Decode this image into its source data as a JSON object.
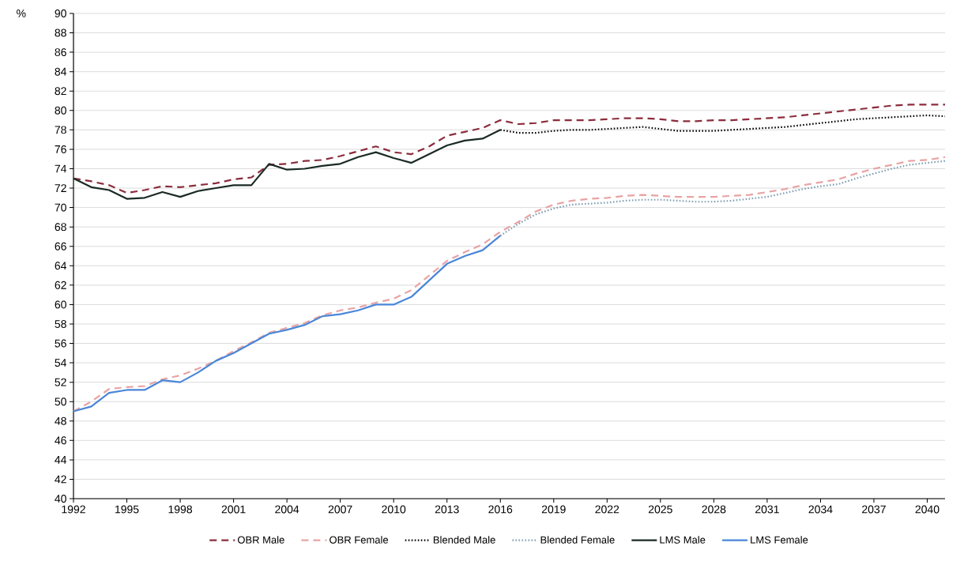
{
  "chart_data": {
    "type": "line",
    "ylabel": "%",
    "xlim": [
      1992,
      2041
    ],
    "ylim": [
      40,
      90
    ],
    "xticks": [
      1992,
      1995,
      1998,
      2001,
      2004,
      2007,
      2010,
      2013,
      2016,
      2019,
      2022,
      2025,
      2028,
      2031,
      2034,
      2037,
      2040
    ],
    "yticks": [
      40,
      42,
      44,
      46,
      48,
      50,
      52,
      54,
      56,
      58,
      60,
      62,
      64,
      66,
      68,
      70,
      72,
      74,
      76,
      78,
      80,
      82,
      84,
      86,
      88,
      90
    ],
    "grid": "y",
    "legend": "bottom",
    "marker": "none",
    "series": [
      {
        "name": "OBR Male",
        "color": "#8b2c3c",
        "line_style": "dashed",
        "x": [
          1992,
          1993,
          1994,
          1995,
          1996,
          1997,
          1998,
          1999,
          2000,
          2001,
          2002,
          2003,
          2004,
          2005,
          2006,
          2007,
          2008,
          2009,
          2010,
          2011,
          2012,
          2013,
          2014,
          2015,
          2016,
          2017,
          2018,
          2019,
          2020,
          2021,
          2022,
          2023,
          2024,
          2025,
          2026,
          2027,
          2028,
          2029,
          2030,
          2031,
          2032,
          2033,
          2034,
          2035,
          2036,
          2037,
          2038,
          2039,
          2040,
          2041
        ],
        "values": [
          73.0,
          72.7,
          72.3,
          71.5,
          71.8,
          72.2,
          72.1,
          72.3,
          72.5,
          72.9,
          73.1,
          74.4,
          74.5,
          74.8,
          74.9,
          75.3,
          75.8,
          76.3,
          75.7,
          75.5,
          76.3,
          77.4,
          77.8,
          78.2,
          79.0,
          78.6,
          78.7,
          79.0,
          79.0,
          79.0,
          79.1,
          79.2,
          79.2,
          79.1,
          78.9,
          78.9,
          79.0,
          79.0,
          79.1,
          79.2,
          79.3,
          79.5,
          79.7,
          79.9,
          80.1,
          80.3,
          80.5,
          80.6,
          80.6,
          80.6
        ]
      },
      {
        "name": "OBR Female",
        "color": "#e8a3a3",
        "line_style": "dashed",
        "x": [
          1992,
          1993,
          1994,
          1995,
          1996,
          1997,
          1998,
          1999,
          2000,
          2001,
          2002,
          2003,
          2004,
          2005,
          2006,
          2007,
          2008,
          2009,
          2010,
          2011,
          2012,
          2013,
          2014,
          2015,
          2016,
          2017,
          2018,
          2019,
          2020,
          2021,
          2022,
          2023,
          2024,
          2025,
          2026,
          2027,
          2028,
          2029,
          2030,
          2031,
          2032,
          2033,
          2034,
          2035,
          2036,
          2037,
          2038,
          2039,
          2040,
          2041
        ],
        "values": [
          49.0,
          50.0,
          51.3,
          51.5,
          51.6,
          52.3,
          52.7,
          53.4,
          54.2,
          55.2,
          56.1,
          57.1,
          57.6,
          58.1,
          58.9,
          59.4,
          59.7,
          60.2,
          60.6,
          61.5,
          63.0,
          64.5,
          65.4,
          66.2,
          67.5,
          68.5,
          69.6,
          70.3,
          70.7,
          70.9,
          71.0,
          71.2,
          71.3,
          71.2,
          71.1,
          71.1,
          71.1,
          71.2,
          71.3,
          71.6,
          71.9,
          72.3,
          72.6,
          72.9,
          73.5,
          74.0,
          74.4,
          74.8,
          74.9,
          75.2
        ]
      },
      {
        "name": "Blended Male",
        "color": "#000000",
        "line_style": "dotted",
        "x": [
          2016,
          2017,
          2018,
          2019,
          2020,
          2021,
          2022,
          2023,
          2024,
          2025,
          2026,
          2027,
          2028,
          2029,
          2030,
          2031,
          2032,
          2033,
          2034,
          2035,
          2036,
          2037,
          2038,
          2039,
          2040,
          2041
        ],
        "values": [
          78.0,
          77.7,
          77.7,
          77.9,
          78.0,
          78.0,
          78.1,
          78.2,
          78.3,
          78.1,
          77.9,
          77.9,
          77.9,
          78.0,
          78.1,
          78.2,
          78.3,
          78.5,
          78.7,
          78.9,
          79.1,
          79.2,
          79.3,
          79.4,
          79.5,
          79.4
        ]
      },
      {
        "name": "Blended Female",
        "color": "#7f9fb0",
        "line_style": "dotted",
        "x": [
          2016,
          2017,
          2018,
          2019,
          2020,
          2021,
          2022,
          2023,
          2024,
          2025,
          2026,
          2027,
          2028,
          2029,
          2030,
          2031,
          2032,
          2033,
          2034,
          2035,
          2036,
          2037,
          2038,
          2039,
          2040,
          2041
        ],
        "values": [
          67.1,
          68.3,
          69.3,
          69.9,
          70.3,
          70.4,
          70.5,
          70.7,
          70.8,
          70.8,
          70.7,
          70.6,
          70.6,
          70.7,
          70.9,
          71.1,
          71.5,
          71.9,
          72.2,
          72.4,
          73.0,
          73.5,
          74.0,
          74.4,
          74.6,
          74.8
        ]
      },
      {
        "name": "LMS Male",
        "color": "#1a2a24",
        "line_style": "solid",
        "x": [
          1992,
          1993,
          1994,
          1995,
          1996,
          1997,
          1998,
          1999,
          2000,
          2001,
          2002,
          2003,
          2004,
          2005,
          2006,
          2007,
          2008,
          2009,
          2010,
          2011,
          2012,
          2013,
          2014,
          2015,
          2016
        ],
        "values": [
          73.0,
          72.1,
          71.8,
          70.9,
          71.0,
          71.6,
          71.1,
          71.7,
          72.0,
          72.3,
          72.3,
          74.5,
          73.9,
          74.0,
          74.3,
          74.5,
          75.2,
          75.7,
          75.1,
          74.6,
          75.5,
          76.4,
          76.9,
          77.1,
          78.0
        ]
      },
      {
        "name": "LMS Female",
        "color": "#4a86d8",
        "line_style": "solid",
        "x": [
          1992,
          1993,
          1994,
          1995,
          1996,
          1997,
          1998,
          1999,
          2000,
          2001,
          2002,
          2003,
          2004,
          2005,
          2006,
          2007,
          2008,
          2009,
          2010,
          2011,
          2012,
          2013,
          2014,
          2015,
          2016
        ],
        "values": [
          49.0,
          49.5,
          50.9,
          51.2,
          51.2,
          52.2,
          52.0,
          53.0,
          54.2,
          55.0,
          56.0,
          57.0,
          57.4,
          57.9,
          58.8,
          59.0,
          59.4,
          60.0,
          60.0,
          60.8,
          62.5,
          64.2,
          65.0,
          65.6,
          67.1
        ]
      }
    ]
  }
}
